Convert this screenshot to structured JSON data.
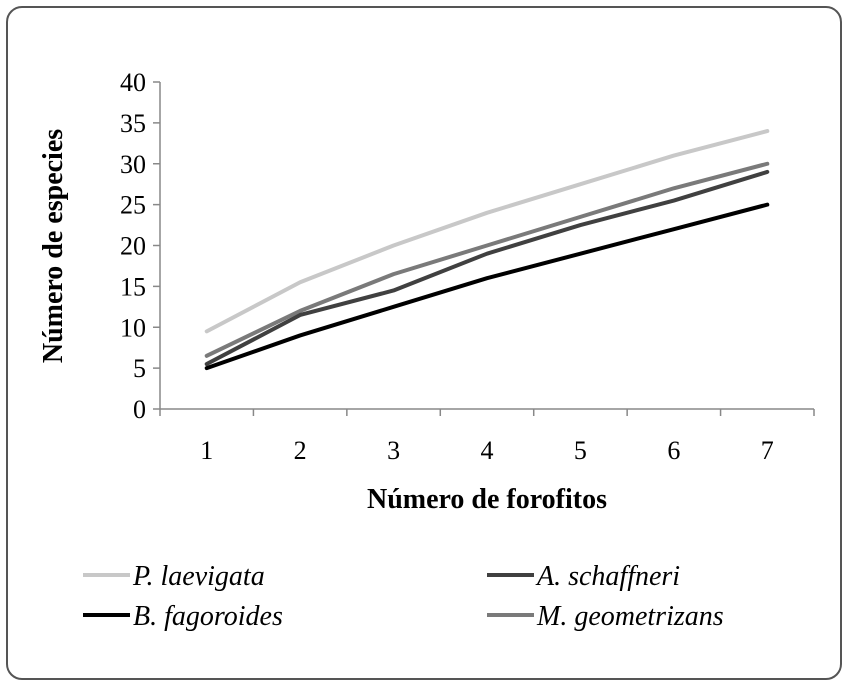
{
  "chart_data": {
    "type": "line",
    "xlabel": "Número  de forofitos",
    "ylabel": "Número  de especies",
    "x": [
      1,
      2,
      3,
      4,
      5,
      6,
      7
    ],
    "xlim": [
      0.5,
      7.5
    ],
    "ylim": [
      0,
      40
    ],
    "yticks": [
      0,
      5,
      10,
      15,
      20,
      25,
      30,
      35,
      40
    ],
    "grid": false,
    "legend_position": "bottom",
    "series": [
      {
        "name": "P. laevigata",
        "color": "#c8c8c8",
        "values": [
          9.5,
          15.5,
          20,
          24,
          27.5,
          31,
          34
        ]
      },
      {
        "name": "A. schaffneri",
        "color": "#404040",
        "values": [
          5.5,
          11.5,
          14.5,
          19,
          22.5,
          25.5,
          29
        ]
      },
      {
        "name": "B. fagoroides",
        "color": "#000000",
        "values": [
          5,
          9,
          12.5,
          16,
          19,
          22,
          25
        ]
      },
      {
        "name": "M. geometrizans",
        "color": "#7a7a7a",
        "values": [
          6.5,
          12,
          16.5,
          20,
          23.5,
          27,
          30
        ]
      }
    ]
  }
}
